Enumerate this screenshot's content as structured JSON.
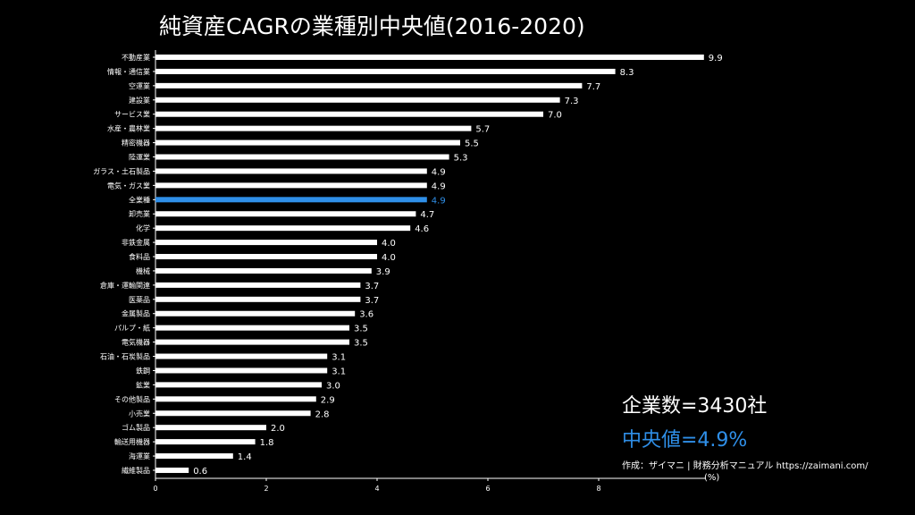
{
  "chart_data": {
    "type": "bar",
    "orientation": "horizontal",
    "title": "純資産CAGRの業種別中央値(2016-2020)",
    "xlabel": "(%)",
    "ylabel": "",
    "xlim": [
      0,
      10
    ],
    "xticks": [
      0,
      2,
      4,
      6,
      8
    ],
    "grid": false,
    "highlight_category": "全業種",
    "colors": {
      "bar": "#ffffff",
      "highlight": "#2f8fe8",
      "background": "#000000"
    },
    "categories": [
      "不動産業",
      "情報・通信業",
      "空運業",
      "建設業",
      "サービス業",
      "水産・農林業",
      "精密機器",
      "陸運業",
      "ガラス・土石製品",
      "電気・ガス業",
      "全業種",
      "卸売業",
      "化学",
      "非鉄金属",
      "食料品",
      "機械",
      "倉庫・運輸関連",
      "医薬品",
      "金属製品",
      "パルプ・紙",
      "電気機器",
      "石油・石炭製品",
      "鉄鋼",
      "鉱業",
      "その他製品",
      "小売業",
      "ゴム製品",
      "輸送用機器",
      "海運業",
      "繊維製品"
    ],
    "values": [
      9.9,
      8.3,
      7.7,
      7.3,
      7.0,
      5.7,
      5.5,
      5.3,
      4.9,
      4.9,
      4.9,
      4.7,
      4.6,
      4.0,
      4.0,
      3.9,
      3.7,
      3.7,
      3.6,
      3.5,
      3.5,
      3.1,
      3.1,
      3.0,
      2.9,
      2.8,
      2.0,
      1.8,
      1.4,
      0.6
    ],
    "value_labels": [
      "9.9",
      "8.3",
      "7.7",
      "7.3",
      "7.0",
      "5.7",
      "5.5",
      "5.3",
      "4.9",
      "4.9",
      "4.9",
      "4.7",
      "4.6",
      "4.0",
      "4.0",
      "3.9",
      "3.7",
      "3.7",
      "3.6",
      "3.5",
      "3.5",
      "3.1",
      "3.1",
      "3.0",
      "2.9",
      "2.8",
      "2.0",
      "1.8",
      "1.4",
      "0.6"
    ]
  },
  "annotations": {
    "company_count": "企業数=3430社",
    "median": "中央値=4.9%",
    "credit": "作成：ザイマニ | 財務分析マニュアル https://zaimani.com/"
  }
}
